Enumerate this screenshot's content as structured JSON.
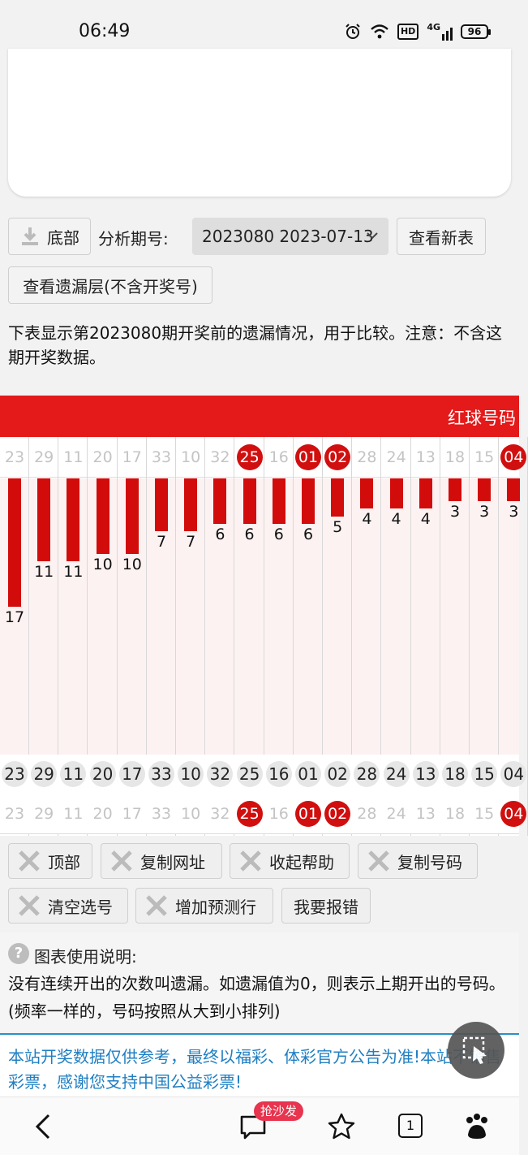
{
  "status_bar": {
    "time": "06:49",
    "network": "4G",
    "hd": "HD",
    "battery": "96"
  },
  "toolbar": {
    "bottom_label": "底部",
    "period_label": "分析期号:",
    "period_selected": "2023080 2023-07-13",
    "view_new_table": "查看新表",
    "view_missing_layer": "查看遗漏层(不含开奖号)"
  },
  "description": "下表显示第2023080期开奖前的遗漏情况，用于比较。注意：不含这期开奖数据。",
  "chart_data": {
    "type": "bar",
    "title": "红球号码",
    "categories": [
      "23",
      "29",
      "11",
      "20",
      "17",
      "33",
      "10",
      "32",
      "25",
      "16",
      "01",
      "02",
      "28",
      "24",
      "13",
      "18",
      "15",
      "04"
    ],
    "values": [
      17,
      11,
      11,
      10,
      10,
      7,
      7,
      6,
      6,
      6,
      6,
      5,
      4,
      4,
      4,
      3,
      3,
      3
    ],
    "drawn_numbers": [
      "25",
      "01",
      "02",
      "04"
    ],
    "ylabel": "",
    "xlabel": ""
  },
  "actions": {
    "top": "顶部",
    "copy_url": "复制网址",
    "collapse_help": "收起帮助",
    "copy_numbers": "复制号码",
    "clear_selection": "清空选号",
    "add_forecast_row": "增加预测行",
    "report_error": "我要报错"
  },
  "help": {
    "title": "图表使用说明:",
    "body": "没有连续开出的次数叫遗漏。如遗漏值为0，则表示上期开出的号码。(频率一样的，号码按照从大到小排列)"
  },
  "notice": "本站开奖数据仅供参考，最终以福彩、体彩官方公告为准!本站不销售彩票，感谢您支持中国公益彩票!",
  "bottom_nav": {
    "comments_badge": "抢沙发",
    "tabs_count": "1"
  },
  "colors": {
    "accent_red": "#e41a1a",
    "link_blue": "#1f7fc2"
  }
}
